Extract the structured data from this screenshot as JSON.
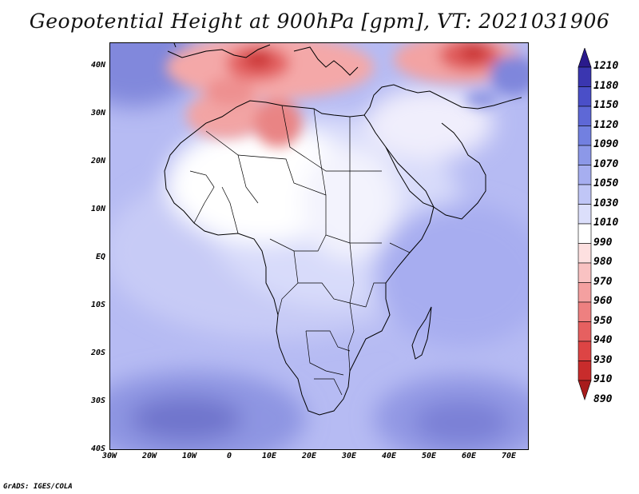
{
  "title": "Geopotential Height at 900hPa [gpm], VT: 2021031906",
  "footer": "GrADS: IGES/COLA",
  "map": {
    "lon_range": [
      -30,
      75
    ],
    "lat_range": [
      -40,
      45
    ],
    "y_ticks": [
      "40N",
      "30N",
      "20N",
      "10N",
      "EQ",
      "10S",
      "20S",
      "30S",
      "40S"
    ],
    "x_ticks": [
      "30W",
      "20W",
      "10W",
      "0",
      "10E",
      "20E",
      "30E",
      "40E",
      "50E",
      "60E",
      "70E"
    ]
  },
  "colorbar": {
    "labels": [
      "1210",
      "1180",
      "1150",
      "1120",
      "1090",
      "1070",
      "1050",
      "1030",
      "1010",
      "990",
      "980",
      "970",
      "960",
      "950",
      "940",
      "930",
      "910",
      "890"
    ],
    "colors": [
      "#2a1a8c",
      "#3a36b0",
      "#4a4fc8",
      "#5e68d6",
      "#7280e0",
      "#8c98e8",
      "#a6aef0",
      "#c0c6f6",
      "#dcdffb",
      "#ffffff",
      "#fde0e0",
      "#f9c2c2",
      "#f4a0a0",
      "#ee8080",
      "#e66060",
      "#dd4444",
      "#c82c2c",
      "#a81c1c"
    ]
  }
}
